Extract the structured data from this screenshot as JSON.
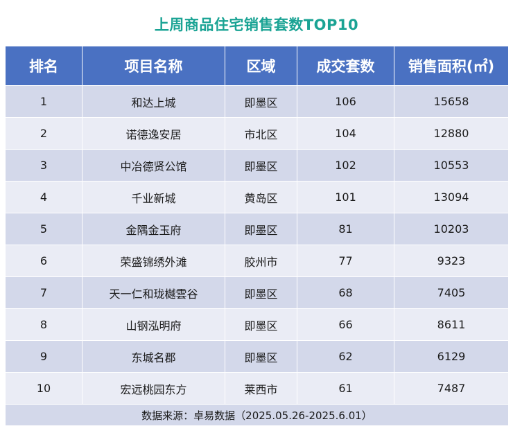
{
  "title": "上周商品住宅销售套数TOP10",
  "table": {
    "headers": [
      "排名",
      "项目名称",
      "区域",
      "成交套数",
      "销售面积(㎡)"
    ],
    "rows": [
      [
        "1",
        "和达上城",
        "即墨区",
        "106",
        "15658"
      ],
      [
        "2",
        "诺德逸安居",
        "市北区",
        "104",
        "12880"
      ],
      [
        "3",
        "中冶德贤公馆",
        "即墨区",
        "102",
        "10553"
      ],
      [
        "4",
        "千业新城",
        "黄岛区",
        "101",
        "13094"
      ],
      [
        "5",
        "金隅金玉府",
        "即墨区",
        "81",
        "10203"
      ],
      [
        "6",
        "荣盛锦绣外滩",
        "胶州市",
        "77",
        "9323"
      ],
      [
        "7",
        "天一仁和珑樾雲谷",
        "即墨区",
        "68",
        "7405"
      ],
      [
        "8",
        "山钢泓明府",
        "即墨区",
        "66",
        "8611"
      ],
      [
        "9",
        "东城名郡",
        "即墨区",
        "62",
        "6129"
      ],
      [
        "10",
        "宏远桃园东方",
        "莱西市",
        "61",
        "7487"
      ]
    ],
    "source": "数据来源：卓易数据（2025.05.26-2025.6.01）"
  }
}
